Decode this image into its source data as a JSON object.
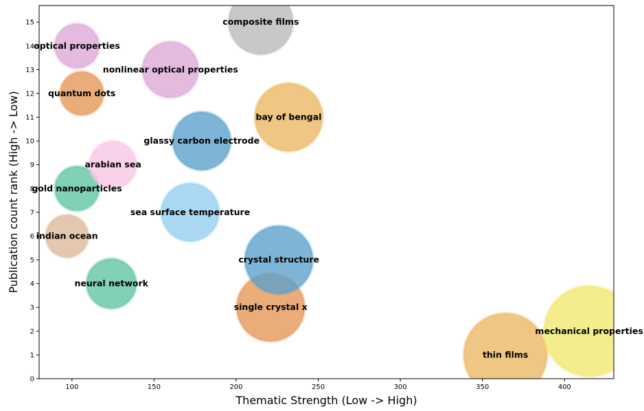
{
  "chart_data": {
    "type": "scatter",
    "variant": "bubble",
    "title": "",
    "xlabel": "Thematic Strength (Low -> High)",
    "ylabel": "Publication count rank (High -> Low)",
    "xlim": [
      80,
      430
    ],
    "ylim": [
      0,
      15.7
    ],
    "xticks": [
      100,
      150,
      200,
      250,
      300,
      350,
      400
    ],
    "yticks": [
      0,
      1,
      2,
      3,
      4,
      5,
      6,
      7,
      8,
      9,
      10,
      11,
      12,
      13,
      14,
      15
    ],
    "grid": false,
    "legend": "none",
    "points": [
      {
        "label": "thin films",
        "x": 364,
        "y": 1,
        "size": 0.92,
        "color": "#eab660"
      },
      {
        "label": "mechanical properties",
        "x": 415,
        "y": 2,
        "size": 1.0,
        "color": "#f0e86e"
      },
      {
        "label": "single crystal x",
        "x": 221,
        "y": 3,
        "size": 0.75,
        "color": "#e49655"
      },
      {
        "label": "neural network",
        "x": 124,
        "y": 4,
        "size": 0.55,
        "color": "#5ec4a2"
      },
      {
        "label": "crystal structure",
        "x": 226,
        "y": 5,
        "size": 0.75,
        "color": "#5aa0cc"
      },
      {
        "label": "indian ocean",
        "x": 97,
        "y": 6,
        "size": 0.47,
        "color": "#dcb897"
      },
      {
        "label": "sea surface temperature",
        "x": 172,
        "y": 7,
        "size": 0.64,
        "color": "#93ceef"
      },
      {
        "label": "gold nanoparticles",
        "x": 103,
        "y": 8,
        "size": 0.49,
        "color": "#5ec4a2"
      },
      {
        "label": "arabian sea",
        "x": 125,
        "y": 9,
        "size": 0.52,
        "color": "#f8c4e6"
      },
      {
        "label": "glassy carbon electrode",
        "x": 179,
        "y": 10,
        "size": 0.64,
        "color": "#5aa0cc"
      },
      {
        "label": "bay of bengal",
        "x": 232,
        "y": 11,
        "size": 0.75,
        "color": "#eab660"
      },
      {
        "label": "quantum dots",
        "x": 106,
        "y": 12,
        "size": 0.48,
        "color": "#e49655"
      },
      {
        "label": "nonlinear optical properties",
        "x": 160,
        "y": 13,
        "size": 0.62,
        "color": "#dca6d6"
      },
      {
        "label": "optical properties",
        "x": 103,
        "y": 14,
        "size": 0.49,
        "color": "#dca6d6"
      },
      {
        "label": "composite films",
        "x": 215,
        "y": 15,
        "size": 0.71,
        "color": "#b8b8b8"
      }
    ]
  }
}
